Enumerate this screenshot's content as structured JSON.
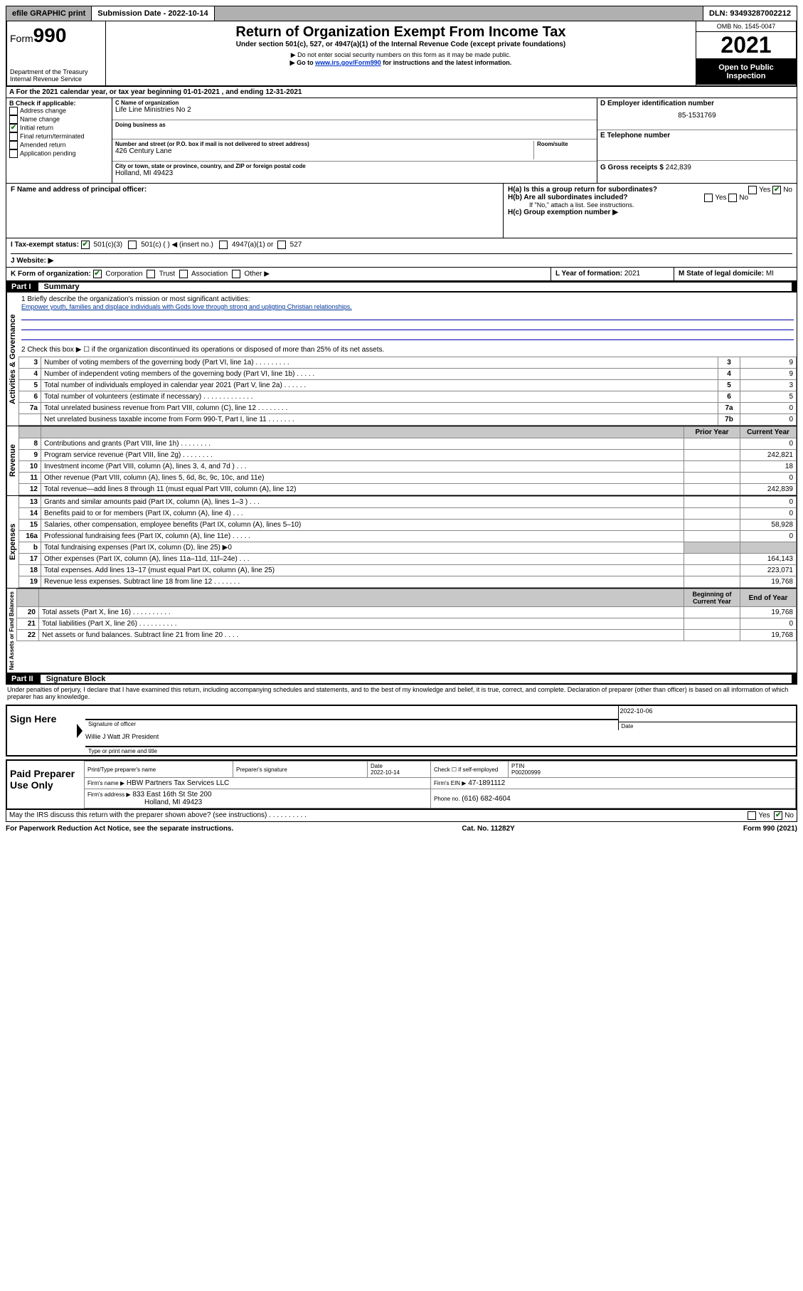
{
  "topbar": {
    "efile": "efile GRAPHIC print",
    "submission": "Submission Date - 2022-10-14",
    "dln": "DLN: 93493287002212"
  },
  "header": {
    "form_label": "Form",
    "form_number": "990",
    "dept": "Department of the Treasury",
    "irs": "Internal Revenue Service",
    "title": "Return of Organization Exempt From Income Tax",
    "subtitle": "Under section 501(c), 527, or 4947(a)(1) of the Internal Revenue Code (except private foundations)",
    "note1": "▶ Do not enter social security numbers on this form as it may be made public.",
    "note2_pre": "▶ Go to ",
    "note2_link": "www.irs.gov/Form990",
    "note2_post": " for instructions and the latest information.",
    "omb": "OMB No. 1545-0047",
    "year": "2021",
    "open": "Open to Public Inspection"
  },
  "row_a": "A For the 2021 calendar year, or tax year beginning 01-01-2021    , and ending 12-31-2021",
  "col_b": {
    "title": "B Check if applicable:",
    "items": [
      "Address change",
      "Name change",
      "Initial return",
      "Final return/terminated",
      "Amended return",
      "Application pending"
    ],
    "checked_index": 2
  },
  "col_c": {
    "name_label": "C Name of organization",
    "name": "Life Line Ministries No 2",
    "dba_label": "Doing business as",
    "addr_label": "Number and street (or P.O. box if mail is not delivered to street address)",
    "room_label": "Room/suite",
    "addr": "426 Century Lane",
    "city_label": "City or town, state or province, country, and ZIP or foreign postal code",
    "city": "Holland, MI  49423"
  },
  "col_d": {
    "label": "D Employer identification number",
    "value": "85-1531769"
  },
  "col_e": {
    "label": "E Telephone number"
  },
  "col_g": {
    "label": "G Gross receipts $",
    "value": "242,839"
  },
  "row_f": {
    "label": "F  Name and address of principal officer:"
  },
  "row_h": {
    "ha": "H(a)  Is this a group return for subordinates?",
    "hb": "H(b)  Are all subordinates included?",
    "hb_note": "If \"No,\" attach a list. See instructions.",
    "hc": "H(c)  Group exemption number ▶",
    "yes": "Yes",
    "no": "No"
  },
  "row_i": {
    "label": "I   Tax-exempt status:",
    "opts": [
      "501(c)(3)",
      "501(c) (  ) ◀ (insert no.)",
      "4947(a)(1) or",
      "527"
    ]
  },
  "row_j": {
    "label": "J   Website: ▶"
  },
  "row_k": {
    "label": "K Form of organization:",
    "opts": [
      "Corporation",
      "Trust",
      "Association",
      "Other ▶"
    ]
  },
  "row_l": {
    "label": "L Year of formation:",
    "value": "2021"
  },
  "row_m": {
    "label": "M State of legal domicile:",
    "value": "MI"
  },
  "part1": {
    "label": "Part I",
    "title": "Summary"
  },
  "summary": {
    "line1_label": "1  Briefly describe the organization's mission or most significant activities:",
    "line1_text": "Empower youth, families and displace individuals with Gods love through strong and upligting Christian relationships.",
    "line2": "2   Check this box ▶ ☐  if the organization discontinued its operations or disposed of more than 25% of its net assets.",
    "governance_rows": [
      {
        "n": "3",
        "t": "Number of voting members of the governing body (Part VI, line 1a)   .    .    .    .    .    .    .    .    .",
        "b": "3",
        "v": "9"
      },
      {
        "n": "4",
        "t": "Number of independent voting members of the governing body (Part VI, line 1b)   .    .    .    .    .",
        "b": "4",
        "v": "9"
      },
      {
        "n": "5",
        "t": "Total number of individuals employed in calendar year 2021 (Part V, line 2a)   .    .    .    .    .    .",
        "b": "5",
        "v": "3"
      },
      {
        "n": "6",
        "t": "Total number of volunteers (estimate if necessary)   .    .    .    .    .    .    .    .    .    .    .    .    .",
        "b": "6",
        "v": "5"
      },
      {
        "n": "7a",
        "t": "Total unrelated business revenue from Part VIII, column (C), line 12   .    .    .    .    .    .    .    .",
        "b": "7a",
        "v": "0"
      },
      {
        "n": "",
        "t": "Net unrelated business taxable income from Form 990-T, Part I, line 11   .    .    .    .    .    .    .",
        "b": "7b",
        "v": "0"
      }
    ],
    "col_headers": {
      "prior": "Prior Year",
      "current": "Current Year"
    },
    "revenue_rows": [
      {
        "n": "8",
        "t": "Contributions and grants (Part VIII, line 1h)   .    .    .    .    .    .    .    .",
        "p": "",
        "c": "0"
      },
      {
        "n": "9",
        "t": "Program service revenue (Part VIII, line 2g)   .    .    .    .    .    .    .    .",
        "p": "",
        "c": "242,821"
      },
      {
        "n": "10",
        "t": "Investment income (Part VIII, column (A), lines 3, 4, and 7d )   .    .    .",
        "p": "",
        "c": "18"
      },
      {
        "n": "11",
        "t": "Other revenue (Part VIII, column (A), lines 5, 6d, 8c, 9c, 10c, and 11e)",
        "p": "",
        "c": "0"
      },
      {
        "n": "12",
        "t": "Total revenue—add lines 8 through 11 (must equal Part VIII, column (A), line 12)",
        "p": "",
        "c": "242,839"
      }
    ],
    "expense_rows": [
      {
        "n": "13",
        "t": "Grants and similar amounts paid (Part IX, column (A), lines 1–3 )   .    .    .",
        "p": "",
        "c": "0"
      },
      {
        "n": "14",
        "t": "Benefits paid to or for members (Part IX, column (A), line 4)   .    .    .",
        "p": "",
        "c": "0"
      },
      {
        "n": "15",
        "t": "Salaries, other compensation, employee benefits (Part IX, column (A), lines 5–10)",
        "p": "",
        "c": "58,928"
      },
      {
        "n": "16a",
        "t": "Professional fundraising fees (Part IX, column (A), line 11e)   .    .    .    .    .",
        "p": "",
        "c": "0"
      },
      {
        "n": "b",
        "t": "Total fundraising expenses (Part IX, column (D), line 25) ▶0",
        "p": "SHADE",
        "c": "SHADE"
      },
      {
        "n": "17",
        "t": "Other expenses (Part IX, column (A), lines 11a–11d, 11f–24e)   .    .    .",
        "p": "",
        "c": "164,143"
      },
      {
        "n": "18",
        "t": "Total expenses. Add lines 13–17 (must equal Part IX, column (A), line 25)",
        "p": "",
        "c": "223,071"
      },
      {
        "n": "19",
        "t": "Revenue less expenses. Subtract line 18 from line 12   .    .    .    .    .    .    .",
        "p": "",
        "c": "19,768"
      }
    ],
    "net_headers": {
      "beg": "Beginning of Current Year",
      "end": "End of Year"
    },
    "net_rows": [
      {
        "n": "20",
        "t": "Total assets (Part X, line 16)   .    .    .    .    .    .    .    .    .    .",
        "p": "",
        "c": "19,768"
      },
      {
        "n": "21",
        "t": "Total liabilities (Part X, line 26)   .    .    .    .    .    .    .    .    .    .",
        "p": "",
        "c": "0"
      },
      {
        "n": "22",
        "t": "Net assets or fund balances. Subtract line 21 from line 20   .    .    .    .",
        "p": "",
        "c": "19,768"
      }
    ],
    "v_labels": {
      "gov": "Activities & Governance",
      "rev": "Revenue",
      "exp": "Expenses",
      "net": "Net Assets or Fund Balances"
    }
  },
  "part2": {
    "label": "Part II",
    "title": "Signature Block"
  },
  "penalties": "Under penalties of perjury, I declare that I have examined this return, including accompanying schedules and statements, and to the best of my knowledge and belief, it is true, correct, and complete. Declaration of preparer (other than officer) is based on all information of which preparer has any knowledge.",
  "sign": {
    "here": "Sign Here",
    "sig_officer": "Signature of officer",
    "date": "Date",
    "date_val": "2022-10-06",
    "name": "Willie J Watt JR  President",
    "name_label": "Type or print name and title"
  },
  "paid": {
    "label": "Paid Preparer Use Only",
    "h1": "Print/Type preparer's name",
    "h2": "Preparer's signature",
    "h3": "Date",
    "h3v": "2022-10-14",
    "h4": "Check ☐ if self-employed",
    "h5": "PTIN",
    "h5v": "P00200999",
    "firm_name_l": "Firm's name    ▶",
    "firm_name": "HBW Partners Tax Services LLC",
    "firm_ein_l": "Firm's EIN ▶",
    "firm_ein": "47-1891112",
    "firm_addr_l": "Firm's address ▶",
    "firm_addr": "833 East 16th St Ste 200",
    "firm_city": "Holland, MI  49423",
    "phone_l": "Phone no.",
    "phone": "(616) 682-4604"
  },
  "discuss": {
    "q": "May the IRS discuss this return with the preparer shown above? (see instructions)   .    .    .    .    .    .    .    .    .    .",
    "yes": "Yes",
    "no": "No"
  },
  "footer": {
    "left": "For Paperwork Reduction Act Notice, see the separate instructions.",
    "mid": "Cat. No. 11282Y",
    "right": "Form 990 (2021)"
  }
}
